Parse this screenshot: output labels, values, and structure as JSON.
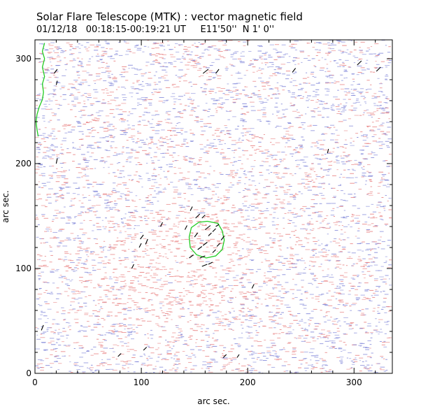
{
  "chart_data": {
    "type": "scatter",
    "title": "Solar Flare Telescope (MTK) : vector magnetic field",
    "subtitle": "01/12/18   00:18:15-00:19:21 UT     E11'50''  N 1' 0''",
    "xlabel": "arc sec.",
    "ylabel": "arc sec.",
    "xlim": [
      0,
      336
    ],
    "ylim": [
      0,
      318
    ],
    "x_ticks": [
      0,
      100,
      200,
      300
    ],
    "y_ticks": [
      0,
      100,
      200,
      300
    ],
    "colors": {
      "positive_field": "#e88080",
      "negative_field": "#7f85d8",
      "contour": "#22cc22",
      "vectors": "#000000",
      "frame": "#000000"
    },
    "series": [
      {
        "type": "contour",
        "points": [
          [
            162,
            145
          ],
          [
            172,
            143
          ],
          [
            176,
            136
          ],
          [
            178,
            127
          ],
          [
            176,
            118
          ],
          [
            170,
            112
          ],
          [
            161,
            110
          ],
          [
            152,
            113
          ],
          [
            146,
            120
          ],
          [
            145,
            130
          ],
          [
            147,
            139
          ],
          [
            154,
            144
          ],
          [
            162,
            145
          ]
        ]
      },
      {
        "type": "contour",
        "points": [
          [
            9,
            315
          ],
          [
            7,
            307
          ],
          [
            9,
            300
          ],
          [
            7,
            292
          ],
          [
            9,
            283
          ],
          [
            7,
            276
          ],
          [
            8,
            268
          ],
          [
            7,
            261
          ],
          [
            4,
            254
          ],
          [
            2,
            247
          ],
          [
            1,
            240
          ],
          [
            2,
            232
          ],
          [
            3,
            226
          ]
        ]
      },
      {
        "type": "vectors",
        "segments": [
          [
            [
              18,
              286
            ],
            [
              21,
              290
            ]
          ],
          [
            [
              20,
              275
            ],
            [
              21,
              279
            ]
          ],
          [
            [
              158,
              286
            ],
            [
              163,
              290
            ]
          ],
          [
            [
              170,
              286
            ],
            [
              173,
              290
            ]
          ],
          [
            [
              242,
              287
            ],
            [
              245,
              291
            ]
          ],
          [
            [
              303,
              294
            ],
            [
              307,
              298
            ]
          ],
          [
            [
              321,
              288
            ],
            [
              325,
              292
            ]
          ],
          [
            [
              275,
              210
            ],
            [
              276,
              214
            ]
          ],
          [
            [
              20,
              200
            ],
            [
              21,
              205
            ]
          ],
          [
            [
              146,
              155
            ],
            [
              148,
              159
            ]
          ],
          [
            [
              151,
              148
            ],
            [
              155,
              152
            ]
          ],
          [
            [
              157,
              148
            ],
            [
              160,
              151
            ]
          ],
          [
            [
              118,
              140
            ],
            [
              120,
              144
            ]
          ],
          [
            [
              141,
              137
            ],
            [
              143,
              141
            ]
          ],
          [
            [
              160,
              137
            ],
            [
              165,
              141
            ]
          ],
          [
            [
              167,
              135
            ],
            [
              170,
              138
            ]
          ],
          [
            [
              170,
              140
            ],
            [
              173,
              142
            ]
          ],
          [
            [
              99,
              128
            ],
            [
              102,
              132
            ]
          ],
          [
            [
              104,
              123
            ],
            [
              106,
              128
            ]
          ],
          [
            [
              98,
              120
            ],
            [
              100,
              124
            ]
          ],
          [
            [
              150,
              130
            ],
            [
              153,
              134
            ]
          ],
          [
            [
              163,
              131
            ],
            [
              166,
              134
            ]
          ],
          [
            [
              175,
              127
            ],
            [
              178,
              131
            ]
          ],
          [
            [
              171,
              121
            ],
            [
              174,
              124
            ]
          ],
          [
            [
              153,
              118
            ],
            [
              157,
              121
            ]
          ],
          [
            [
              158,
              122
            ],
            [
              162,
              125
            ]
          ],
          [
            [
              167,
              115
            ],
            [
              170,
              118
            ]
          ],
          [
            [
              145,
              110
            ],
            [
              149,
              113
            ]
          ],
          [
            [
              155,
              110
            ],
            [
              160,
              112
            ]
          ],
          [
            [
              163,
              104
            ],
            [
              167,
              106
            ]
          ],
          [
            [
              157,
              102
            ],
            [
              162,
              104
            ]
          ],
          [
            [
              91,
              100
            ],
            [
              93,
              104
            ]
          ],
          [
            [
              204,
              81
            ],
            [
              206,
              85
            ]
          ],
          [
            [
              102,
              22
            ],
            [
              105,
              25
            ]
          ],
          [
            [
              78,
              16
            ],
            [
              81,
              19
            ]
          ],
          [
            [
              177,
              15
            ],
            [
              180,
              18
            ]
          ],
          [
            [
              190,
              15
            ],
            [
              192,
              18
            ]
          ],
          [
            [
              6,
              41
            ],
            [
              8,
              46
            ]
          ]
        ]
      }
    ]
  }
}
